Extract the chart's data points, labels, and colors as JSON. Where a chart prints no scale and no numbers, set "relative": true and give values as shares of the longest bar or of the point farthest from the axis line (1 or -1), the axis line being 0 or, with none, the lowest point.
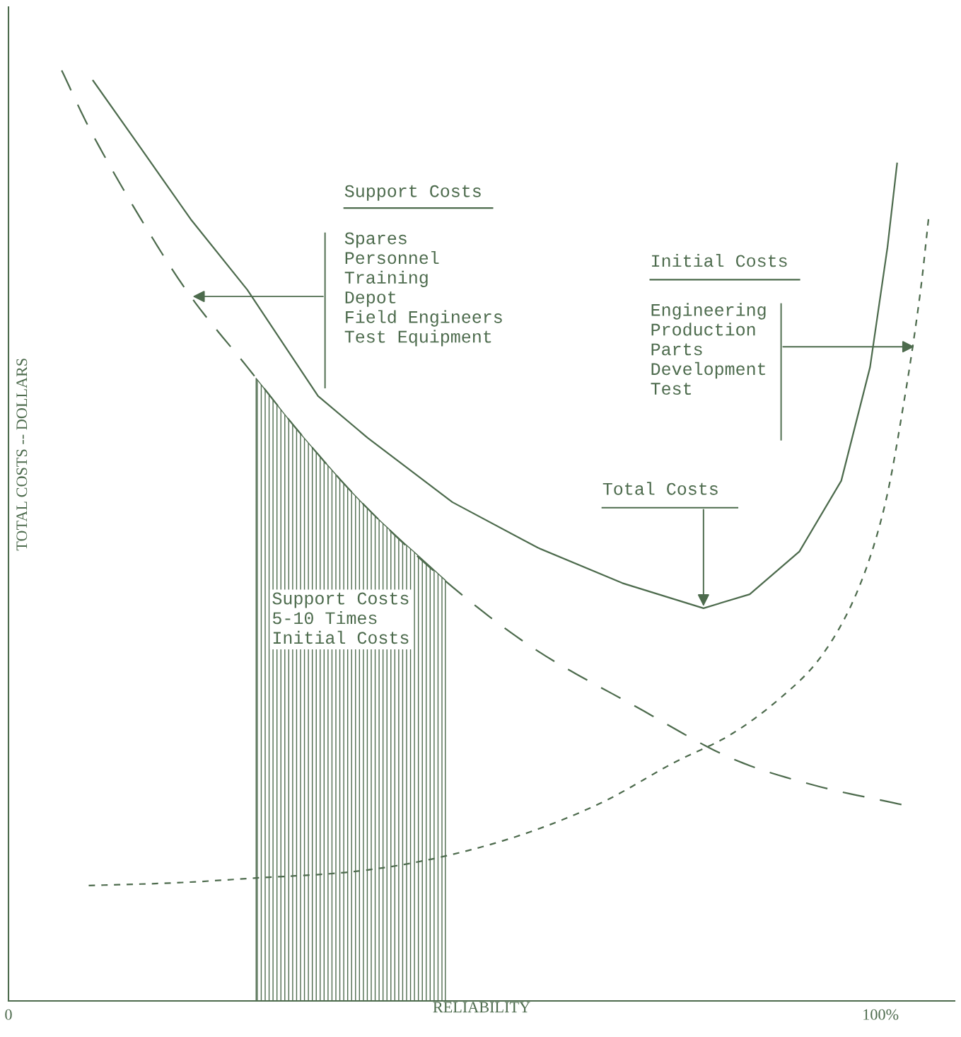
{
  "chart_data": {
    "type": "line",
    "relative": true,
    "xlabel": "RELIABILITY",
    "ylabel": "TOTAL COSTS -- DOLLARS",
    "xlim": [
      0,
      108.5
    ],
    "xticks": [
      {
        "value": 0,
        "label": "0"
      },
      {
        "value": 100,
        "label": "100%"
      }
    ],
    "series": [
      {
        "color": "#4d6b4d",
        "line_style": "dashed",
        "x": [
          6.1,
          9.6,
          15.2,
          20.9,
          27.4,
          33.9,
          41.2,
          50.9,
          60.7,
          72.0,
          82.6,
          92.3,
          102.4
        ],
        "values": [
          1.0,
          0.932,
          0.84,
          0.757,
          0.681,
          0.605,
          0.529,
          0.445,
          0.376,
          0.316,
          0.262,
          0.232,
          0.211
        ]
      },
      {
        "color": "#4d6b4d",
        "line_style": "dashed",
        "x": [
          9.2,
          19.3,
          28.2,
          39.6,
          49.3,
          59.0,
          68.0,
          76.1,
          82.6,
          88.2,
          93.1,
          97.2,
          100.4,
          102.8,
          104.5,
          105.5
        ],
        "values": [
          0.124,
          0.127,
          0.132,
          0.139,
          0.154,
          0.179,
          0.213,
          0.255,
          0.285,
          0.323,
          0.369,
          0.437,
          0.529,
          0.65,
          0.757,
          0.84
        ]
      },
      {
        "color": "#4d6b4d",
        "line_style": "solid",
        "x": [
          9.7,
          15.2,
          20.9,
          27.4,
          35.5,
          41.2,
          50.9,
          60.7,
          70.4,
          79.7,
          85.0,
          90.7,
          95.5,
          98.8,
          100.8,
          101.9
        ],
        "values": [
          0.989,
          0.916,
          0.84,
          0.764,
          0.65,
          0.605,
          0.536,
          0.487,
          0.449,
          0.422,
          0.437,
          0.483,
          0.559,
          0.681,
          0.81,
          0.9
        ]
      },
      {
        "type": "area",
        "color": "#4d6b4d",
        "x": [
          28.4,
          33.9,
          41.2,
          50.1
        ],
        "values": [
          0.669,
          0.605,
          0.529,
          0.452
        ]
      }
    ],
    "annotations": [
      "Support Costs",
      {
        "text": "Spares\nPersonnel\nTraining\nDepot\nField Engineers\nTest Equipment",
        "x": 20.9,
        "y": 0.757
      },
      "Initial Costs",
      {
        "text": "Engineering\nProduction\nParts\nDevelopment\nTest",
        "x": 104.1,
        "y": 0.703
      },
      {
        "text": "Total Costs",
        "x": 79.7,
        "y": 0.422
      },
      "Support Costs\n5-10 Times\nInitial Costs"
    ]
  }
}
